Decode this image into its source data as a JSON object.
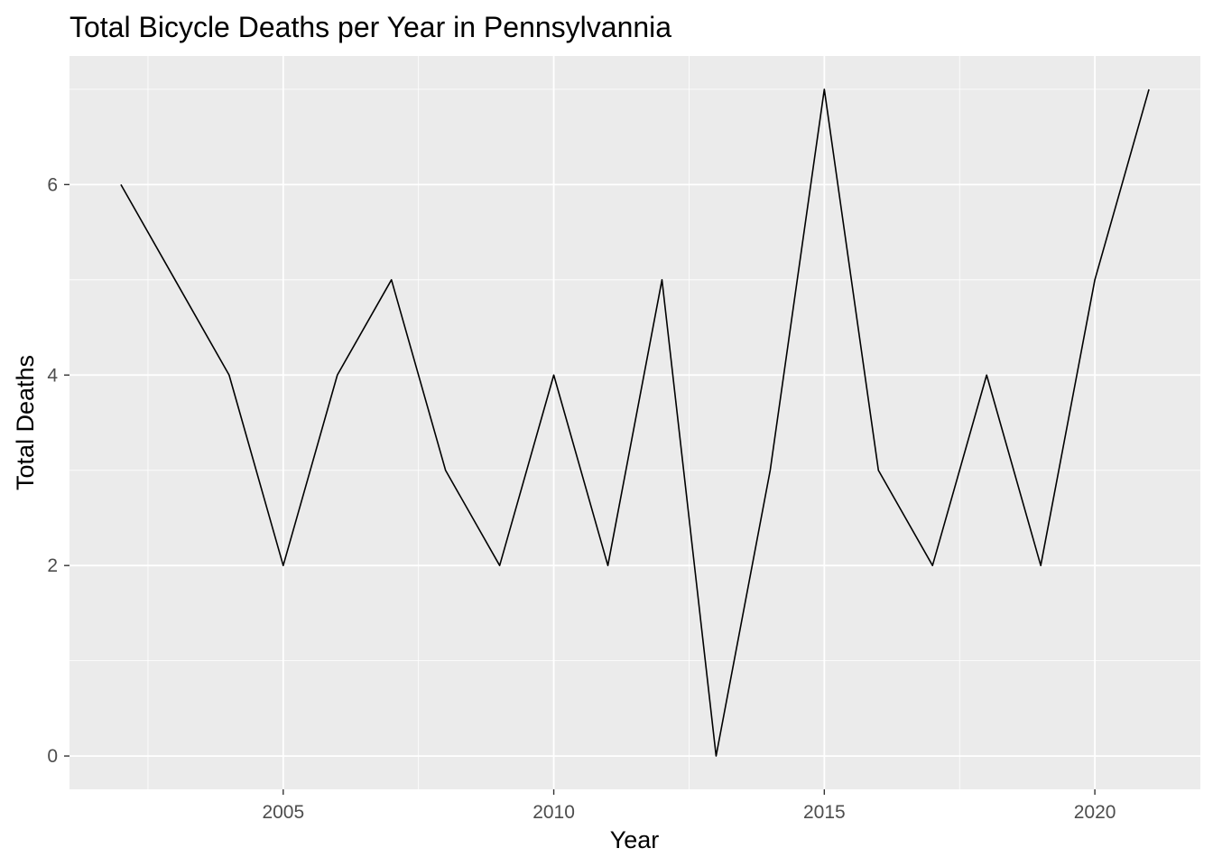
{
  "chart_data": {
    "type": "line",
    "title": "Total Bicycle Deaths per Year in Pennsylvannia",
    "xlabel": "Year",
    "ylabel": "Total Deaths",
    "x": [
      2002,
      2003,
      2004,
      2005,
      2006,
      2007,
      2008,
      2009,
      2010,
      2011,
      2012,
      2013,
      2014,
      2015,
      2016,
      2017,
      2018,
      2019,
      2020,
      2021
    ],
    "series": [
      {
        "values": [
          6,
          5,
          4,
          2,
          4,
          5,
          3,
          2,
          4,
          2,
          5,
          0,
          3,
          7,
          3,
          2,
          4,
          2,
          5,
          7
        ]
      }
    ],
    "xlim": [
      2001.05,
      2021.95
    ],
    "ylim": [
      -0.35,
      7.35
    ],
    "x_ticks": [
      2005,
      2010,
      2015,
      2020
    ],
    "x_tick_labels": [
      "2005",
      "2010",
      "2015",
      "2020"
    ],
    "y_ticks": [
      0,
      2,
      4,
      6
    ],
    "y_tick_labels": [
      "0",
      "2",
      "4",
      "6"
    ],
    "grid": true,
    "legend": "none",
    "colors": {
      "panel_background": "#ebebeb",
      "grid_line": "#ffffff",
      "series_line": "#000000",
      "tick_label": "#4d4d4d",
      "tick_mark": "#333333",
      "text": "#000000"
    }
  }
}
